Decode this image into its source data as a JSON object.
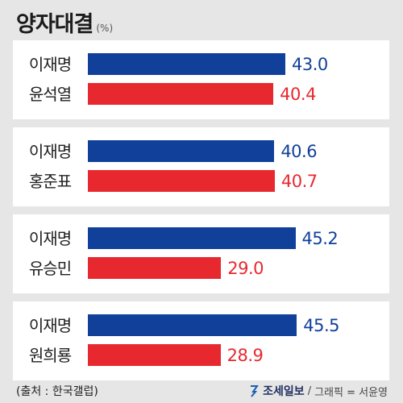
{
  "header": {
    "title": "양자대결",
    "unit": "(%)"
  },
  "colors": {
    "candidate_a": "#11409b",
    "candidate_b": "#e8282f",
    "background": "#e6e6e6",
    "panel": "#ffffff"
  },
  "chart_data": {
    "type": "bar",
    "orientation": "horizontal",
    "title": "양자대결",
    "unit": "%",
    "xlim": [
      0,
      60
    ],
    "groups": [
      {
        "rows": [
          {
            "name": "이재명",
            "value": 43.0,
            "label": "43.0"
          },
          {
            "name": "윤석열",
            "value": 40.4,
            "label": "40.4"
          }
        ]
      },
      {
        "rows": [
          {
            "name": "이재명",
            "value": 40.6,
            "label": "40.6"
          },
          {
            "name": "홍준표",
            "value": 40.7,
            "label": "40.7"
          }
        ]
      },
      {
        "rows": [
          {
            "name": "이재명",
            "value": 45.2,
            "label": "45.2"
          },
          {
            "name": "유승민",
            "value": 29.0,
            "label": "29.0"
          }
        ]
      },
      {
        "rows": [
          {
            "name": "이재명",
            "value": 45.5,
            "label": "45.5"
          },
          {
            "name": "원희룡",
            "value": 28.9,
            "label": "28.9"
          }
        ]
      }
    ]
  },
  "footer": {
    "source": "(출처 : 한국갤럽)",
    "brand": "조세일보",
    "slash": "/",
    "credit": "그래픽 = 서윤영"
  }
}
